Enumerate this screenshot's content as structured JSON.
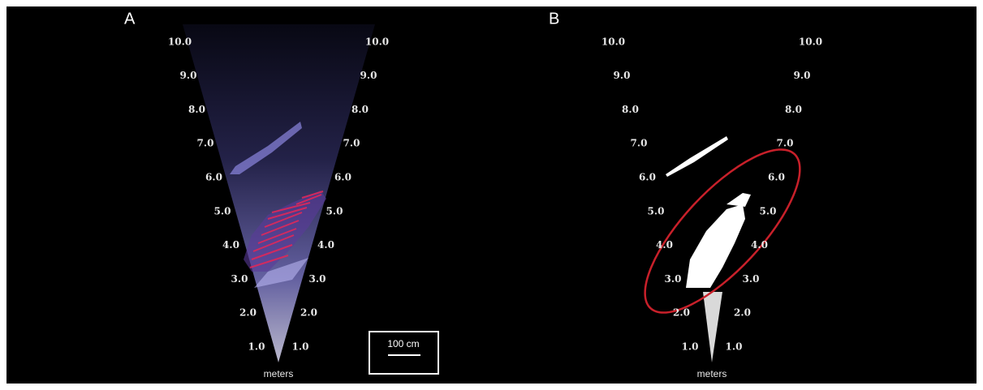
{
  "figure": {
    "panels": [
      {
        "label": "A",
        "ranges_left": [
          "10.0",
          "9.0",
          "8.0",
          "7.0",
          "6.0",
          "5.0",
          "4.0",
          "3.0",
          "2.0",
          "1.0"
        ],
        "ranges_right": [
          "10.0",
          "9.0",
          "8.0",
          "7.0",
          "6.0",
          "5.0",
          "4.0",
          "3.0",
          "2.0",
          "1.0"
        ],
        "unit": "meters"
      },
      {
        "label": "B",
        "ranges_left": [
          "10.0",
          "9.0",
          "8.0",
          "7.0",
          "6.0",
          "5.0",
          "4.0",
          "3.0",
          "2.0",
          "1.0"
        ],
        "ranges_right": [
          "10.0",
          "9.0",
          "8.0",
          "7.0",
          "6.0",
          "5.0",
          "4.0",
          "3.0",
          "2.0",
          "1.0"
        ],
        "unit": "meters"
      }
    ],
    "scale_bar": "100 cm"
  }
}
